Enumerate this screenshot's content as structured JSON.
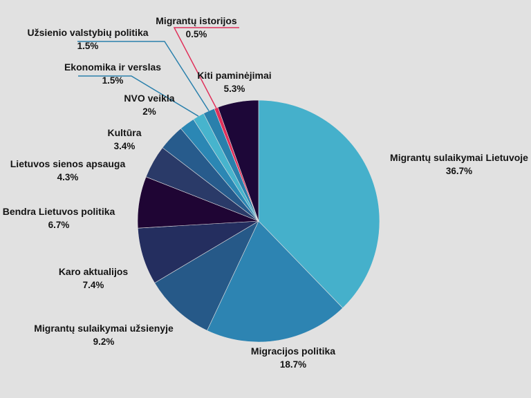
{
  "chart_data": {
    "type": "pie",
    "title": "",
    "slices": [
      {
        "label": "Migrantų sulaikymai Lietuvoje",
        "value": 36.7,
        "display": "36.7%",
        "color": "#45b0cb"
      },
      {
        "label": "Migracijos politika",
        "value": 18.7,
        "display": "18.7%",
        "color": "#2d84b2"
      },
      {
        "label": "Migrantų sulaikymai užsienyje",
        "value": 9.2,
        "display": "9.2%",
        "color": "#265988"
      },
      {
        "label": "Karo aktualijos",
        "value": 7.4,
        "display": "7.4%",
        "color": "#242e5f"
      },
      {
        "label": "Bendra Lietuvos politika",
        "value": 6.7,
        "display": "6.7%",
        "color": "#1f0534"
      },
      {
        "label": "Lietuvos sienos apsauga",
        "value": 4.3,
        "display": "4.3%",
        "color": "#2a3a68"
      },
      {
        "label": "Kultūra",
        "value": 3.4,
        "display": "3.4%",
        "color": "#275b8c"
      },
      {
        "label": "NVO veikla",
        "value": 2.0,
        "display": "2%",
        "color": "#2b87b4"
      },
      {
        "label": "Ekonomika ir verslas",
        "value": 1.5,
        "display": "1.5%",
        "color": "#47b4cd"
      },
      {
        "label": "Užsienio valstybių politika",
        "value": 1.5,
        "display": "1.5%",
        "color": "#2a80ac"
      },
      {
        "label": "Migrantų istorijos",
        "value": 0.5,
        "display": "0.5%",
        "color": "#e0305a"
      },
      {
        "label": "Kiti paminėjimai",
        "value": 5.3,
        "display": "5.3%",
        "color": "#1d0738"
      }
    ]
  }
}
